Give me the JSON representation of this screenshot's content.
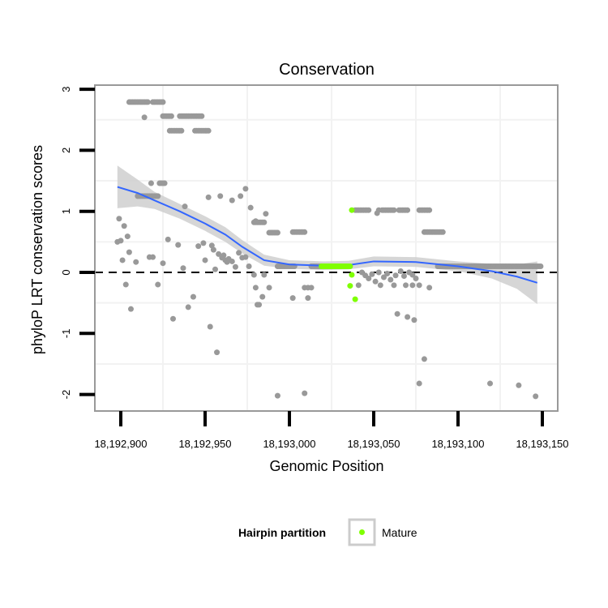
{
  "chart_data": {
    "type": "scatter",
    "title": "Conservation",
    "xlabel": "Genomic Position",
    "ylabel": "phyloP LRT conservation scores",
    "xlim": [
      18192884,
      18193160
    ],
    "ylim": [
      -2.28,
      3.0
    ],
    "x_ticks": [
      18192900,
      18192950,
      18193000,
      18193050,
      18193100,
      18193150
    ],
    "x_tick_labels": [
      "18,192,900",
      "18,192,950",
      "18,193,000",
      "18,193,050",
      "18,193,100",
      "18,193,150"
    ],
    "y_ticks": [
      3,
      2,
      1,
      0,
      -1,
      -2
    ],
    "y_tick_labels": [
      "3",
      "2",
      "1",
      "0",
      "-1",
      "-2"
    ],
    "reference_line_y": 0,
    "grid": true,
    "colors": {
      "point": "#999999",
      "mature": "#7fff00",
      "smooth": "#3366ff",
      "band": "#cccccc"
    },
    "legend": {
      "title": "Hairpin partition",
      "entries": [
        {
          "label": "Mature",
          "color": "#7fff00"
        }
      ],
      "placement": "bottom"
    },
    "runs": [
      {
        "start": 18192905,
        "end": 18192916,
        "score": 2.79
      },
      {
        "start": 18192919,
        "end": 18192925,
        "score": 2.79
      },
      {
        "start": 18192925,
        "end": 18192930,
        "score": 2.56
      },
      {
        "start": 18192935,
        "end": 18192948,
        "score": 2.56
      },
      {
        "start": 18192929,
        "end": 18192936,
        "score": 2.32
      },
      {
        "start": 18192944,
        "end": 18192952,
        "score": 2.32
      },
      {
        "start": 18192923,
        "end": 18192926,
        "score": 1.46
      },
      {
        "start": 18192979,
        "end": 18192985,
        "score": 0.82
      },
      {
        "start": 18192988,
        "end": 18192993,
        "score": 0.65
      },
      {
        "start": 18193002,
        "end": 18193009,
        "score": 0.66
      },
      {
        "start": 18193039,
        "end": 18193047,
        "score": 1.02
      },
      {
        "start": 18193055,
        "end": 18193062,
        "score": 1.02
      },
      {
        "start": 18193065,
        "end": 18193070,
        "score": 1.02
      },
      {
        "start": 18193077,
        "end": 18193083,
        "score": 1.02
      },
      {
        "start": 18193080,
        "end": 18193091,
        "score": 0.66
      },
      {
        "start": 18192993,
        "end": 18193003,
        "score": 0.1
      },
      {
        "start": 18193013,
        "end": 18193018,
        "score": 0.1
      },
      {
        "start": 18193019,
        "end": 18193036,
        "score": 0.1,
        "mature": true
      },
      {
        "start": 18193088,
        "end": 18193149,
        "score": 0.1
      },
      {
        "start": 18192910,
        "end": 18192922,
        "score": 1.25
      }
    ],
    "points": [
      [
        18192914,
        2.54
      ],
      [
        18192918,
        1.46
      ],
      [
        18192938,
        1.08
      ],
      [
        18192952,
        1.23
      ],
      [
        18192959,
        1.25
      ],
      [
        18192966,
        1.18
      ],
      [
        18192971,
        1.25
      ],
      [
        18192974,
        1.37
      ],
      [
        18192977,
        1.06
      ],
      [
        18192980,
        0.84
      ],
      [
        18192986,
        0.96
      ],
      [
        18193053,
        1.02
      ],
      [
        18193052,
        0.97
      ],
      [
        18192899,
        0.88
      ],
      [
        18192902,
        0.76
      ],
      [
        18192904,
        0.59
      ],
      [
        18192898,
        0.5
      ],
      [
        18192900,
        0.52
      ],
      [
        18192905,
        0.33
      ],
      [
        18192901,
        0.2
      ],
      [
        18192909,
        0.17
      ],
      [
        18192917,
        0.25
      ],
      [
        18192919,
        0.25
      ],
      [
        18192925,
        0.15
      ],
      [
        18192928,
        0.54
      ],
      [
        18192934,
        0.45
      ],
      [
        18192937,
        0.07
      ],
      [
        18192946,
        0.43
      ],
      [
        18192949,
        0.48
      ],
      [
        18192950,
        0.2
      ],
      [
        18192954,
        0.44
      ],
      [
        18192955,
        0.37
      ],
      [
        18192956,
        0.05
      ],
      [
        18192958,
        0.3
      ],
      [
        18192960,
        0.24
      ],
      [
        18192961,
        0.28
      ],
      [
        18192962,
        0.2
      ],
      [
        18192963,
        0.17
      ],
      [
        18192964,
        0.22
      ],
      [
        18192966,
        0.18
      ],
      [
        18192968,
        0.09
      ],
      [
        18192970,
        0.32
      ],
      [
        18192972,
        0.24
      ],
      [
        18192974,
        0.25
      ],
      [
        18192976,
        0.1
      ],
      [
        18192979,
        -0.04
      ],
      [
        18192985,
        -0.04
      ],
      [
        18192903,
        -0.2
      ],
      [
        18192906,
        -0.6
      ],
      [
        18192922,
        -0.2
      ],
      [
        18192931,
        -0.76
      ],
      [
        18192940,
        -0.57
      ],
      [
        18192943,
        -0.4
      ],
      [
        18192953,
        -0.89
      ],
      [
        18192957,
        -1.31
      ],
      [
        18192980,
        -0.25
      ],
      [
        18192981,
        -0.53
      ],
      [
        18192988,
        -0.25
      ],
      [
        18192984,
        -0.4
      ],
      [
        18192982,
        -0.53
      ],
      [
        18193002,
        -0.42
      ],
      [
        18193011,
        -0.42
      ],
      [
        18193009,
        -0.25
      ],
      [
        18193011,
        -0.25
      ],
      [
        18193013,
        -0.25
      ],
      [
        18193041,
        -0.21
      ],
      [
        18193043,
        0.0
      ],
      [
        18193045,
        -0.05
      ],
      [
        18193047,
        -0.1
      ],
      [
        18193049,
        -0.03
      ],
      [
        18193051,
        -0.15
      ],
      [
        18193053,
        0.0
      ],
      [
        18193056,
        -0.08
      ],
      [
        18193058,
        -0.02
      ],
      [
        18193060,
        -0.12
      ],
      [
        18193063,
        -0.05
      ],
      [
        18193066,
        0.02
      ],
      [
        18193068,
        -0.06
      ],
      [
        18193071,
        0.0
      ],
      [
        18193073,
        -0.04
      ],
      [
        18193075,
        -0.1
      ],
      [
        18193054,
        -0.21
      ],
      [
        18193062,
        -0.21
      ],
      [
        18193069,
        -0.21
      ],
      [
        18193073,
        -0.21
      ],
      [
        18193077,
        -0.21
      ],
      [
        18193083,
        -0.25
      ],
      [
        18193064,
        -0.68
      ],
      [
        18193070,
        -0.73
      ],
      [
        18193074,
        -0.78
      ],
      [
        18193080,
        -1.42
      ],
      [
        18193077,
        -1.82
      ],
      [
        18193119,
        -1.82
      ],
      [
        18193136,
        -1.85
      ],
      [
        18193146,
        -2.03
      ],
      [
        18192993,
        -2.02
      ],
      [
        18193009,
        -1.98
      ]
    ],
    "mature_points": [
      [
        18193037,
        1.02
      ],
      [
        18193037,
        -0.04
      ],
      [
        18193036,
        -0.22
      ],
      [
        18193039,
        -0.44
      ]
    ],
    "smooth": {
      "x": [
        18192898,
        18192910,
        18192920,
        18192935,
        18192950,
        18192962,
        18192972,
        18192985,
        18193000,
        18193020,
        18193035,
        18193050,
        18193075,
        18193100,
        18193120,
        18193135,
        18193147
      ],
      "y": [
        1.4,
        1.3,
        1.18,
        1.0,
        0.8,
        0.62,
        0.42,
        0.2,
        0.13,
        0.11,
        0.12,
        0.18,
        0.17,
        0.1,
        0.02,
        -0.07,
        -0.17
      ],
      "se": [
        0.35,
        0.22,
        0.14,
        0.12,
        0.12,
        0.12,
        0.11,
        0.09,
        0.07,
        0.07,
        0.07,
        0.08,
        0.08,
        0.08,
        0.12,
        0.2,
        0.35
      ]
    }
  }
}
